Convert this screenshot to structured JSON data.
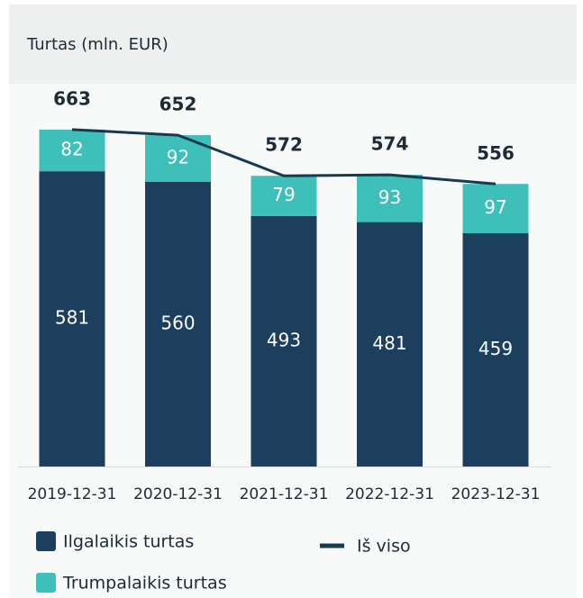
{
  "chart_data": {
    "type": "bar",
    "stacked": true,
    "title": "Turtas (mln. EUR)",
    "categories": [
      "2019-12-31",
      "2020-12-31",
      "2021-12-31",
      "2022-12-31",
      "2023-12-31"
    ],
    "series": [
      {
        "name": "Ilgalaikis turtas",
        "color": "#1d3f5e",
        "values": [
          581,
          560,
          493,
          481,
          459
        ]
      },
      {
        "name": "Trumpalaikis turtas",
        "color": "#3fbfb9",
        "values": [
          82,
          92,
          79,
          93,
          97
        ]
      },
      {
        "name": "Iš viso",
        "type": "line",
        "color": "#163a4f",
        "values": [
          663,
          652,
          572,
          574,
          556
        ]
      }
    ],
    "ylim": [
      0,
      700
    ]
  }
}
